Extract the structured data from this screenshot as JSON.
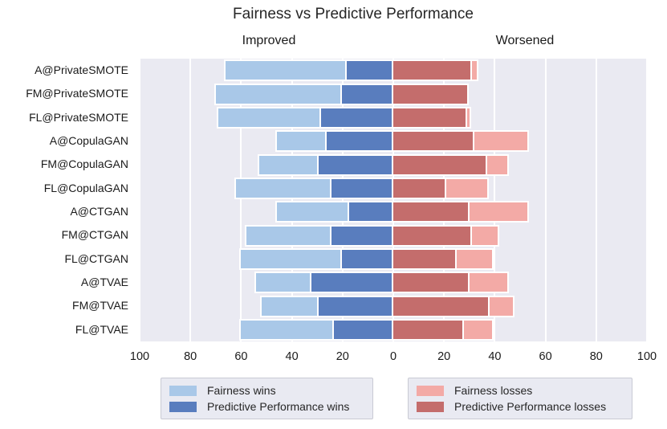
{
  "title": "Fairness vs Predictive Performance",
  "column_headers": {
    "left": "Improved",
    "right": "Worsened"
  },
  "colors": {
    "fairness_wins": "#a9c8e8",
    "predictive_wins": "#597dbe",
    "predictive_losses": "#c46d6c",
    "fairness_losses": "#f3aaa6",
    "plot_background": "#eaeaf2",
    "grid_line": "#ffffff",
    "legend_background": "#e9eaf2",
    "legend_border": "#c9cad4",
    "text": "#262626"
  },
  "chart_data": {
    "type": "bar",
    "orientation": "horizontal-diverging",
    "title": "Fairness vs Predictive Performance",
    "xlabel": "",
    "ylabel": "",
    "xlim": [
      -100,
      100
    ],
    "grid": true,
    "x_ticks": [
      "100",
      "80",
      "60",
      "40",
      "20",
      "0",
      "20",
      "40",
      "60",
      "80",
      "100"
    ],
    "categories": [
      "A@PrivateSMOTE",
      "FM@PrivateSMOTE",
      "FL@PrivateSMOTE",
      "A@CopulaGAN",
      "FM@CopulaGAN",
      "FL@CopulaGAN",
      "A@CTGAN",
      "FM@CTGAN",
      "FL@CTGAN",
      "A@TVAE",
      "FM@TVAE",
      "FL@TVAE"
    ],
    "series": [
      {
        "name": "Fairness wins",
        "side": "left",
        "stack": 1,
        "color_key": "fairness_wins",
        "values": [
          47,
          49,
          40,
          19,
          23,
          37,
          28,
          33,
          39,
          21,
          22,
          36
        ]
      },
      {
        "name": "Predictive Performance wins",
        "side": "left",
        "stack": 0,
        "color_key": "predictive_wins",
        "values": [
          19,
          21,
          29,
          27,
          30,
          25,
          18,
          25,
          21,
          33,
          30,
          24
        ]
      },
      {
        "name": "Predictive Performance losses",
        "side": "right",
        "stack": 0,
        "color_key": "predictive_losses",
        "values": [
          31,
          29,
          29,
          32,
          37,
          21,
          30,
          31,
          25,
          30,
          38,
          28
        ]
      },
      {
        "name": "Fairness losses",
        "side": "right",
        "stack": 1,
        "color_key": "fairness_losses",
        "values": [
          2,
          0,
          1,
          21,
          8,
          16,
          23,
          10,
          14,
          15,
          9,
          11
        ]
      }
    ],
    "legend": {
      "position": "bottom",
      "boxes": [
        {
          "entries": [
            "Fairness wins",
            "Predictive Performance wins"
          ]
        },
        {
          "entries": [
            "Fairness losses",
            "Predictive Performance losses"
          ]
        }
      ]
    }
  }
}
